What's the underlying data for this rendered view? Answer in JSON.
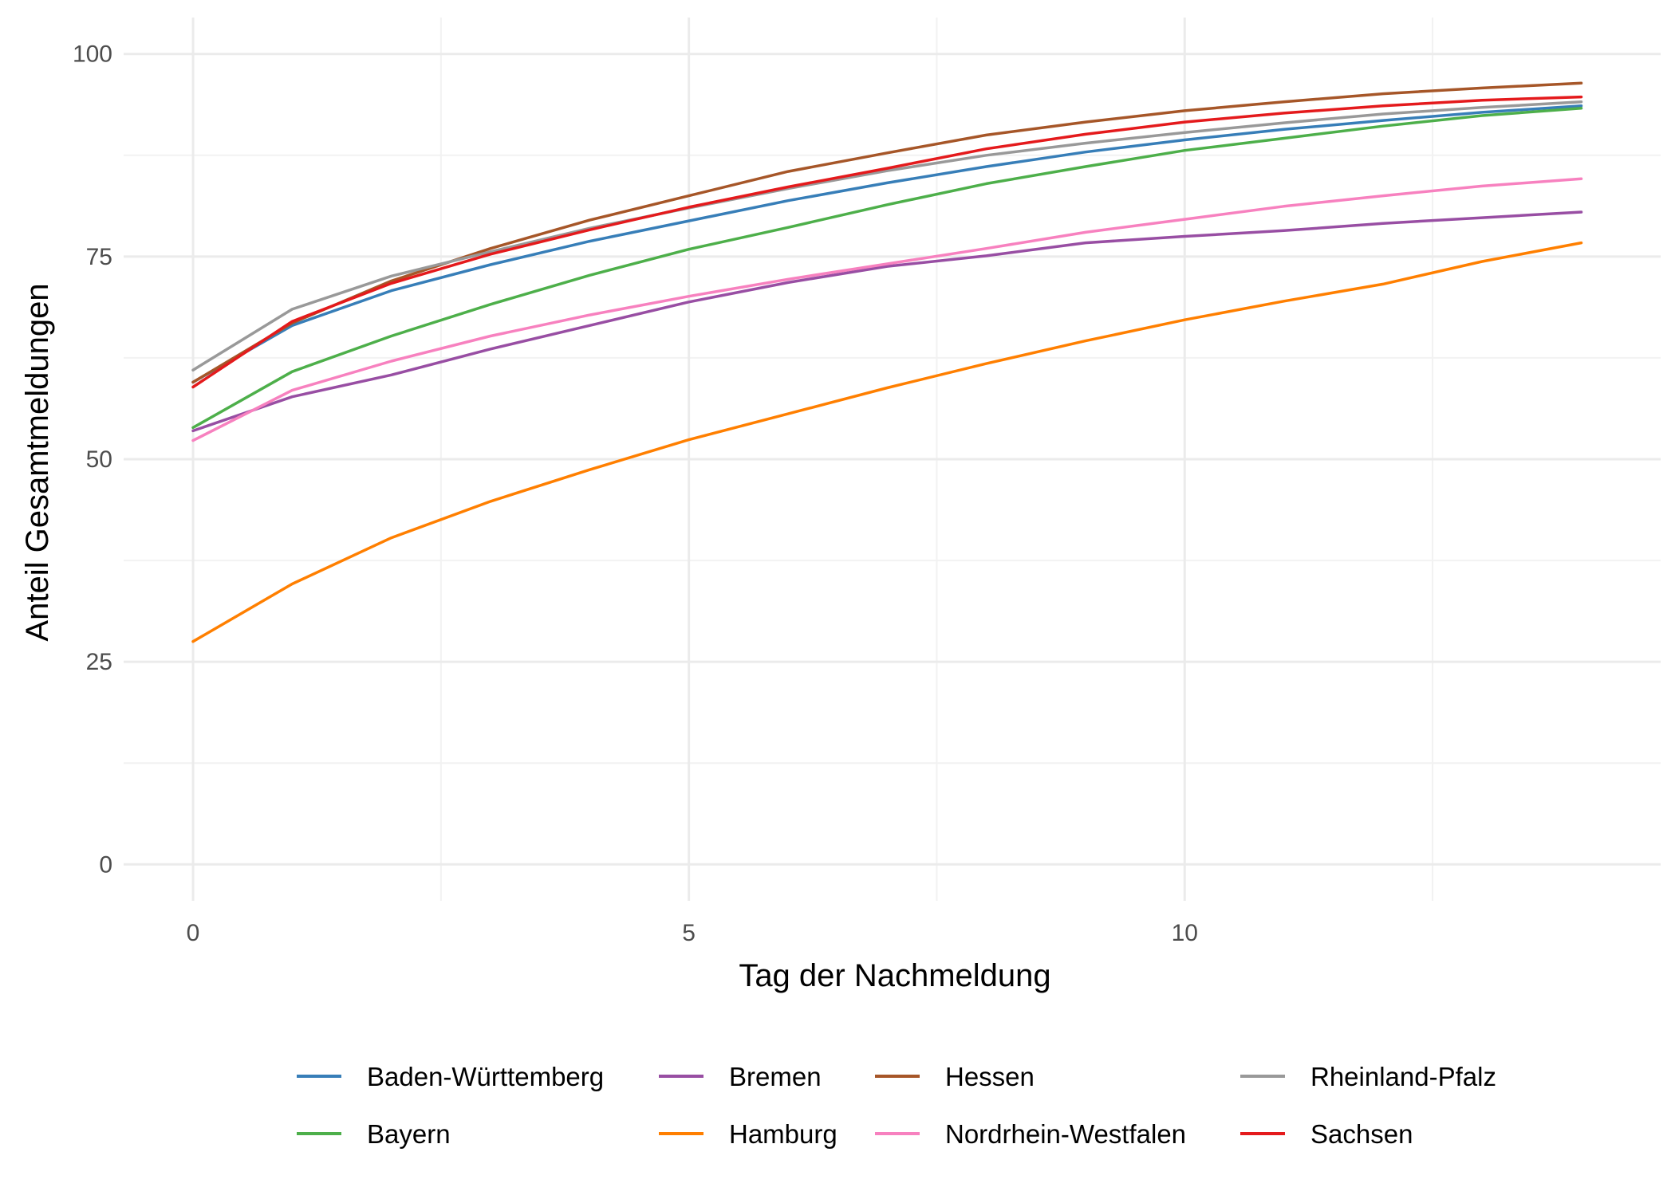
{
  "chart_data": {
    "type": "line",
    "xlabel": "Tag der Nachmeldung",
    "ylabel": "Anteil Gesamtmeldungen",
    "xlim": [
      -0.7,
      14.8
    ],
    "ylim": [
      -4.5,
      104.5
    ],
    "x_ticks": [
      0,
      5,
      10
    ],
    "x_minor_ticks": [
      2.5,
      7.5,
      12.5
    ],
    "y_ticks": [
      0,
      25,
      50,
      75,
      100
    ],
    "y_minor_ticks": [
      12.5,
      37.5,
      62.5,
      87.5
    ],
    "grid": true,
    "legend_position": "bottom",
    "x": [
      0,
      1,
      2,
      3,
      4,
      5,
      6,
      7,
      8,
      9,
      10,
      11,
      12,
      13,
      14
    ],
    "series": [
      {
        "name": "Baden-Württemberg",
        "color": "#377EB8",
        "values": [
          59.5,
          66.5,
          70.8,
          74.0,
          76.9,
          79.4,
          81.9,
          84.1,
          86.1,
          87.9,
          89.4,
          90.7,
          91.8,
          92.8,
          93.6
        ]
      },
      {
        "name": "Bayern",
        "color": "#4DAF4A",
        "values": [
          53.9,
          60.8,
          65.2,
          69.1,
          72.7,
          75.9,
          78.6,
          81.4,
          84.0,
          86.1,
          88.1,
          89.6,
          91.1,
          92.4,
          93.3
        ]
      },
      {
        "name": "Bremen",
        "color": "#984EA3",
        "values": [
          53.5,
          57.7,
          60.4,
          63.6,
          66.5,
          69.4,
          71.8,
          73.8,
          75.1,
          76.7,
          77.5,
          78.2,
          79.1,
          79.8,
          80.5
        ]
      },
      {
        "name": "Hamburg",
        "color": "#FF7F00",
        "values": [
          27.5,
          34.6,
          40.3,
          44.8,
          48.7,
          52.4,
          55.6,
          58.8,
          61.8,
          64.6,
          67.2,
          69.5,
          71.6,
          74.4,
          76.7
        ]
      },
      {
        "name": "Hessen",
        "color": "#A65628",
        "values": [
          59.5,
          66.8,
          72.0,
          76.0,
          79.5,
          82.5,
          85.5,
          87.8,
          90.0,
          91.6,
          93.0,
          94.1,
          95.1,
          95.8,
          96.4
        ]
      },
      {
        "name": "Nordrhein-Westfalen",
        "color": "#F781BF",
        "values": [
          52.3,
          58.5,
          62.1,
          65.2,
          67.8,
          70.1,
          72.2,
          74.1,
          76.0,
          78.0,
          79.6,
          81.2,
          82.5,
          83.7,
          84.6
        ]
      },
      {
        "name": "Rheinland-Pfalz",
        "color": "#999999",
        "values": [
          61.0,
          68.5,
          72.6,
          75.6,
          78.5,
          81.0,
          83.4,
          85.6,
          87.5,
          89.0,
          90.3,
          91.5,
          92.6,
          93.4,
          94.1
        ]
      },
      {
        "name": "Sachsen",
        "color": "#E41A1C",
        "values": [
          58.9,
          67.0,
          71.7,
          75.3,
          78.3,
          81.1,
          83.6,
          85.9,
          88.3,
          90.1,
          91.6,
          92.7,
          93.6,
          94.3,
          94.7
        ]
      }
    ]
  }
}
